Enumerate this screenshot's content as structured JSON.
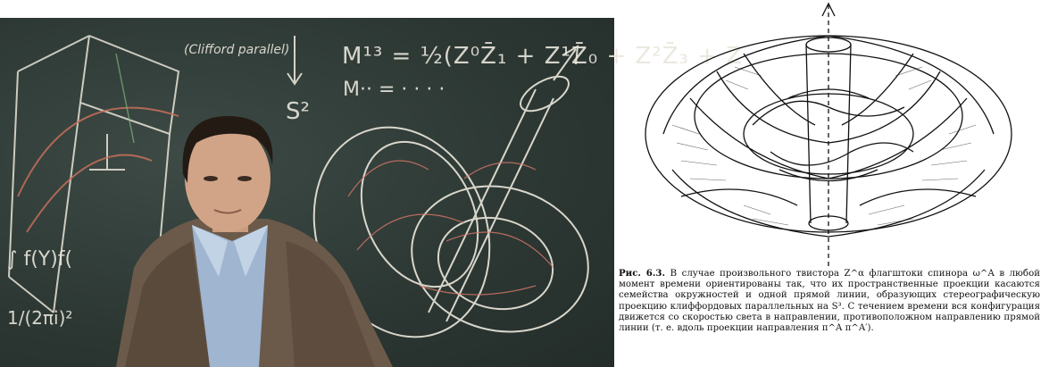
{
  "photo": {
    "chalk": {
      "clifford_label": "(Clifford parallel)",
      "equation_1": "M¹³ = ½(Z⁰Z̄₁ + Z¹Z̄₀ + Z²Z̄₃ + Z",
      "equation_2": "M·· = · · · ·",
      "sphere": "S²",
      "integral": "∫ f(Y)f(",
      "fraction": "1/(2πi)²"
    }
  },
  "figure": {
    "name": "twistor flagpole congruence drawing"
  },
  "caption": {
    "lead": "Рис. 6.3.",
    "text": " В случае произвольного твистора Z^α флагштоки спинора ω^A в любой момент времени ориентированы так, что их пространственные проекции касаются семейства окружностей и одной прямой линии, образующих стереографическую проекцию клиффордовых параллельных на S³. С течением времени вся конфигурация движется со скоростью света в направлении, противоположном направлению прямой линии (т. е. вдоль проекции направления π^A π^A′)."
  },
  "colors": {
    "blackboard": "#2f3b37",
    "chalk": "#e9e6dc",
    "chalk_red": "#d9786a",
    "ink": "#111111"
  }
}
